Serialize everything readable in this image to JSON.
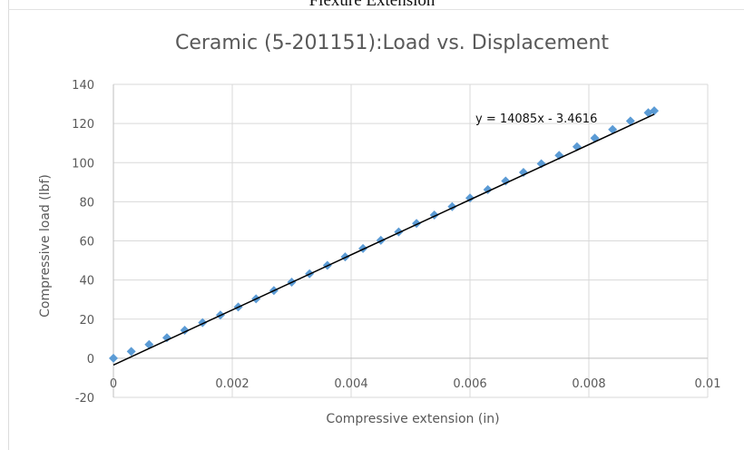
{
  "page": {
    "heading": "Flexure Extension"
  },
  "chart_data": {
    "type": "scatter",
    "title": "Ceramic (5-201151):Load vs. Displacement",
    "xlabel": "Compressive extension (in)",
    "ylabel": "Compressive load (lbf)",
    "xlim": [
      0,
      0.01
    ],
    "ylim": [
      -20,
      140
    ],
    "x_ticks": [
      0,
      0.002,
      0.004,
      0.006,
      0.008,
      0.01
    ],
    "x_tick_labels": [
      "0",
      "0.002",
      "0.004",
      "0.006",
      "0.008",
      "0.01"
    ],
    "y_ticks": [
      -20,
      0,
      20,
      40,
      60,
      80,
      100,
      120,
      140
    ],
    "y_tick_labels": [
      "-20",
      "0",
      "20",
      "40",
      "60",
      "80",
      "100",
      "120",
      "140"
    ],
    "grid": true,
    "series": [
      {
        "marker": "diamond",
        "color": "#5b9bd5",
        "x": [
          0,
          0.0003,
          0.0006,
          0.0009,
          0.0012,
          0.0015,
          0.0018,
          0.0021,
          0.0024,
          0.0027,
          0.003,
          0.0033,
          0.0036,
          0.0039,
          0.0042,
          0.0045,
          0.0048,
          0.0051,
          0.0054,
          0.0057,
          0.006,
          0.0063,
          0.0066,
          0.0069,
          0.0072,
          0.0075,
          0.0078,
          0.0081,
          0.0084,
          0.0087,
          0.009,
          0.0091
        ],
        "y": [
          0,
          3.5,
          7,
          10.5,
          14.3,
          18.2,
          22.1,
          26.2,
          30.4,
          34.6,
          38.9,
          43.2,
          47.5,
          51.8,
          56.1,
          60.3,
          64.6,
          68.9,
          73.2,
          77.5,
          81.9,
          86.2,
          90.6,
          95,
          99.4,
          103.7,
          108.1,
          112.5,
          116.9,
          121.3,
          125.5,
          126.5
        ]
      }
    ],
    "trendline": {
      "type": "linear",
      "slope": 14085,
      "intercept": -3.4616,
      "x_range": [
        0,
        0.0091
      ],
      "color": "#000000",
      "label": "y = 14085x - 3.4616"
    }
  }
}
